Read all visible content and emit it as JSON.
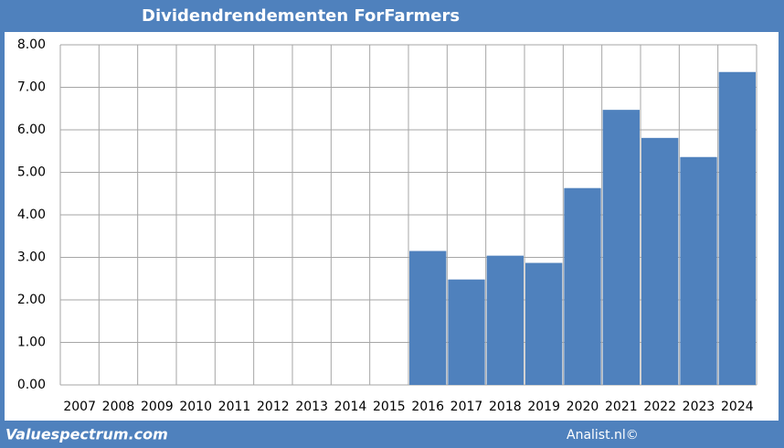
{
  "chart_data": {
    "type": "bar",
    "title": "Dividendrendementen ForFarmers",
    "categories": [
      "2007",
      "2008",
      "2009",
      "2010",
      "2011",
      "2012",
      "2013",
      "2014",
      "2015",
      "2016",
      "2017",
      "2018",
      "2019",
      "2020",
      "2021",
      "2022",
      "2023",
      "2024"
    ],
    "values": [
      null,
      null,
      null,
      null,
      null,
      null,
      null,
      null,
      null,
      3.15,
      2.48,
      3.04,
      2.87,
      4.63,
      6.47,
      5.81,
      5.36,
      7.36
    ],
    "color": "#4f81bd",
    "ylim": [
      0,
      8
    ],
    "yticks": [
      {
        "value": 0,
        "label": "0.00"
      },
      {
        "value": 1,
        "label": "1.00"
      },
      {
        "value": 2,
        "label": "2.00"
      },
      {
        "value": 3,
        "label": "3.00"
      },
      {
        "value": 4,
        "label": "4.00"
      },
      {
        "value": 5,
        "label": "5.00"
      },
      {
        "value": 6,
        "label": "6.00"
      },
      {
        "value": 7,
        "label": "7.00"
      },
      {
        "value": 8,
        "label": "8.00"
      }
    ],
    "grid": true,
    "footer_left": "Valuespectrum.com",
    "footer_right": "Analist.nl©"
  }
}
